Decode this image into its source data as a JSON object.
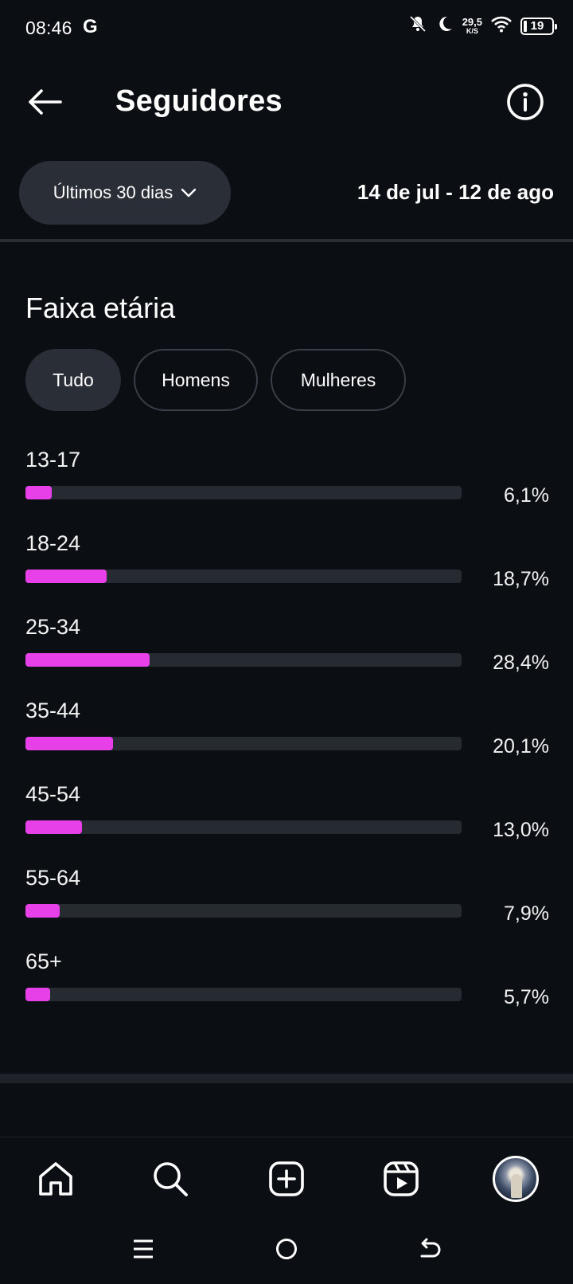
{
  "status_bar": {
    "time": "08:46",
    "g_label": "G",
    "net_speed": "29,5",
    "net_unit": "K/S",
    "battery": "19"
  },
  "header": {
    "title": "Seguidores"
  },
  "period": {
    "label": "Últimos 30 dias",
    "date_range": "14 de jul - 12 de ago"
  },
  "section": {
    "title": "Faixa etária"
  },
  "filters": [
    {
      "label": "Tudo",
      "active": true
    },
    {
      "label": "Homens",
      "active": false
    },
    {
      "label": "Mulheres",
      "active": false
    }
  ],
  "chart_data": {
    "type": "bar",
    "categories": [
      "13-17",
      "18-24",
      "25-34",
      "35-44",
      "45-54",
      "55-64",
      "65+"
    ],
    "values": [
      6.1,
      18.7,
      28.4,
      20.1,
      13.0,
      7.9,
      5.7
    ],
    "value_labels": [
      "6,1%",
      "18,7%",
      "28,4%",
      "20,1%",
      "13,0%",
      "7,9%",
      "5,7%"
    ],
    "xlim": [
      0,
      100
    ],
    "bar_color": "#e840e8",
    "track_color": "#262a31"
  },
  "bottom_nav": [
    "home-icon",
    "search-icon",
    "create-icon",
    "reels-icon",
    "profile-avatar"
  ],
  "colors": {
    "background": "#0b0e13",
    "pill": "#2a2e36",
    "accent": "#e840e8"
  }
}
